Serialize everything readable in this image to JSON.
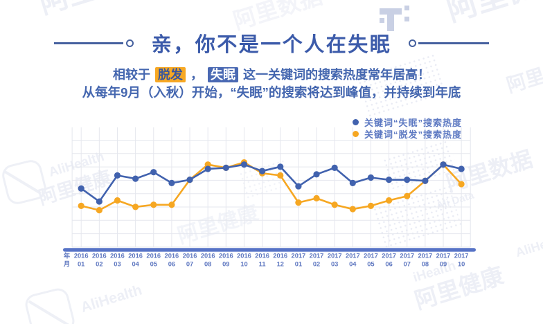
{
  "header": {
    "title": "亲，你不是一个人在失眠",
    "accent_color": "#3c5baa"
  },
  "subtitle": {
    "line1_prefix": "相较于",
    "hairloss_highlight": "脱发",
    "separator": "，",
    "insomnia_highlight": "失眠",
    "line1_suffix": "这一关键词的搜索热度常年居高！",
    "line2": "从每年9月（入秋）开始，“失眠”的搜索将达到峰值，并持续到年底",
    "highlight_yellow_bg": "#f7a823",
    "highlight_blue_bg": "#4a69b3"
  },
  "legend": [
    {
      "label": "关键词“失眠”搜索热度",
      "color": "#4162ae"
    },
    {
      "label": "关键词“脱发”搜索热度",
      "color": "#f6a722"
    }
  ],
  "axis": {
    "year_label": "年",
    "month_label": "月",
    "bar_color": "#5773c6",
    "label_color": "#5e77c0",
    "grid_color": "#e5e7ee"
  },
  "watermarks": {
    "brand_cn": "阿里健康",
    "brand_en": "AliHealth",
    "data_cn": "阿里数据",
    "data_en": "Ali Data",
    "ihealth": "iHealth"
  },
  "chart_data": {
    "type": "line",
    "categories": [
      "2016-01",
      "2016-02",
      "2016-03",
      "2016-04",
      "2016-05",
      "2016-06",
      "2016-07",
      "2016-08",
      "2016-09",
      "2016-10",
      "2016-11",
      "2016-12",
      "2017-01",
      "2017-02",
      "2017-03",
      "2017-04",
      "2017-05",
      "2017-06",
      "2017-07",
      "2017-08",
      "2017-09",
      "2017-10"
    ],
    "series": [
      {
        "name": "关键词“失眠”搜索热度",
        "color": "#4162ae",
        "values": [
          54,
          42,
          66,
          63,
          69,
          59,
          62,
          72,
          73,
          76,
          70,
          74,
          56,
          67,
          73,
          59,
          64,
          62,
          62,
          61,
          76,
          72
        ]
      },
      {
        "name": "关键词“脱发”搜索热度",
        "color": "#f6a722",
        "values": [
          38,
          34,
          43,
          37,
          39,
          39,
          62,
          76,
          73,
          78,
          68,
          66,
          41,
          45,
          39,
          35,
          38,
          43,
          47,
          61,
          76,
          58
        ]
      }
    ],
    "ylim": [
      0,
      100
    ],
    "y_axis_labels_visible": false,
    "grid": true,
    "legend_position": "top-right"
  }
}
